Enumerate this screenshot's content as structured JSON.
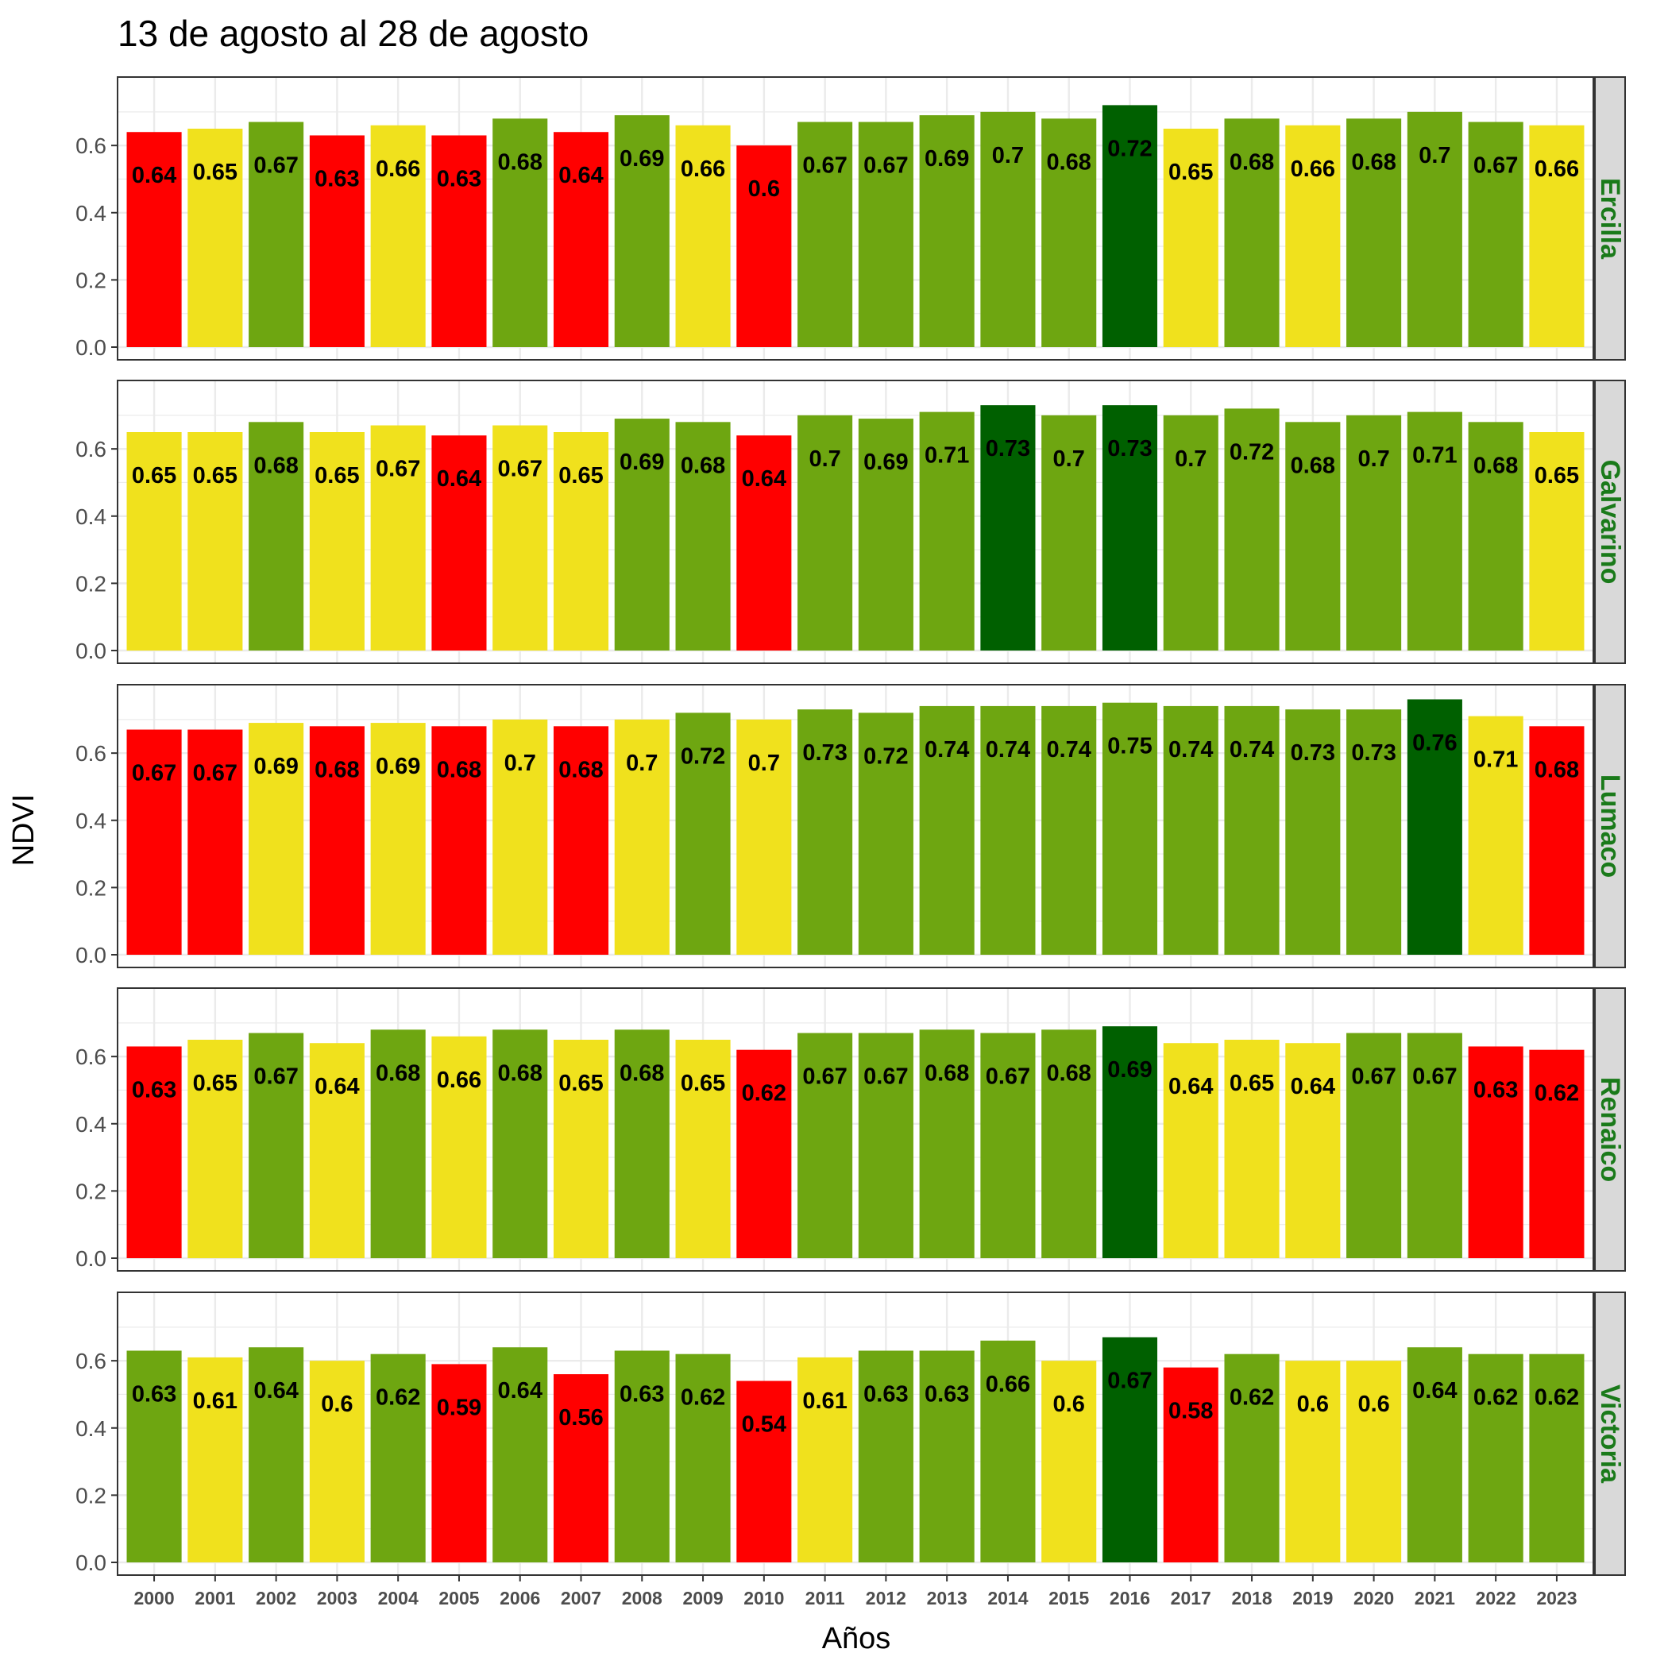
{
  "chart_data": {
    "type": "bar",
    "title": "13 de agosto al 28 de agosto",
    "xlabel": "Años",
    "ylabel": "NDVI",
    "ylim": [
      0,
      0.8
    ],
    "yticks": [
      "0.0",
      "0.2",
      "0.4",
      "0.6"
    ],
    "grid": true,
    "legend": "none",
    "facet_label_position": "right",
    "categories": [
      "2000",
      "2001",
      "2002",
      "2003",
      "2004",
      "2005",
      "2006",
      "2007",
      "2008",
      "2009",
      "2010",
      "2011",
      "2012",
      "2013",
      "2014",
      "2015",
      "2016",
      "2017",
      "2018",
      "2019",
      "2020",
      "2021",
      "2022",
      "2023"
    ],
    "colors": {
      "red": "#ff0000",
      "yellow": "#f0e11d",
      "green": "#6ea611",
      "darkgreen": "#006000",
      "strip_fill": "#d9d9d9",
      "strip_text": "#1a7a1a",
      "grid": "#ebebeb"
    },
    "facets": [
      {
        "name": "Ercilla",
        "values": [
          0.64,
          0.65,
          0.67,
          0.63,
          0.66,
          0.63,
          0.68,
          0.64,
          0.69,
          0.66,
          0.6,
          0.67,
          0.67,
          0.69,
          0.7,
          0.68,
          0.72,
          0.65,
          0.68,
          0.66,
          0.68,
          0.7,
          0.67,
          0.66
        ],
        "labels": [
          "0.64",
          "0.65",
          "0.67",
          "0.63",
          "0.66",
          "0.63",
          "0.68",
          "0.64",
          "0.69",
          "0.66",
          "0.6",
          "0.67",
          "0.67",
          "0.69",
          "0.7",
          "0.68",
          "0.72",
          "0.65",
          "0.68",
          "0.66",
          "0.68",
          "0.7",
          "0.67",
          "0.66"
        ],
        "bar_colors": [
          "red",
          "yellow",
          "green",
          "red",
          "yellow",
          "red",
          "green",
          "red",
          "green",
          "yellow",
          "red",
          "green",
          "green",
          "green",
          "green",
          "green",
          "darkgreen",
          "yellow",
          "green",
          "yellow",
          "green",
          "green",
          "green",
          "yellow"
        ]
      },
      {
        "name": "Galvarino",
        "values": [
          0.65,
          0.65,
          0.68,
          0.65,
          0.67,
          0.64,
          0.67,
          0.65,
          0.69,
          0.68,
          0.64,
          0.7,
          0.69,
          0.71,
          0.73,
          0.7,
          0.73,
          0.7,
          0.72,
          0.68,
          0.7,
          0.71,
          0.68,
          0.65
        ],
        "labels": [
          "0.65",
          "0.65",
          "0.68",
          "0.65",
          "0.67",
          "0.64",
          "0.67",
          "0.65",
          "0.69",
          "0.68",
          "0.64",
          "0.7",
          "0.69",
          "0.71",
          "0.73",
          "0.7",
          "0.73",
          "0.7",
          "0.72",
          "0.68",
          "0.7",
          "0.71",
          "0.68",
          "0.65"
        ],
        "bar_colors": [
          "yellow",
          "yellow",
          "green",
          "yellow",
          "yellow",
          "red",
          "yellow",
          "yellow",
          "green",
          "green",
          "red",
          "green",
          "green",
          "green",
          "darkgreen",
          "green",
          "darkgreen",
          "green",
          "green",
          "green",
          "green",
          "green",
          "green",
          "yellow"
        ]
      },
      {
        "name": "Lumaco",
        "values": [
          0.67,
          0.67,
          0.69,
          0.68,
          0.69,
          0.68,
          0.7,
          0.68,
          0.7,
          0.72,
          0.7,
          0.73,
          0.72,
          0.74,
          0.74,
          0.74,
          0.75,
          0.74,
          0.74,
          0.73,
          0.73,
          0.76,
          0.71,
          0.68
        ],
        "labels": [
          "0.67",
          "0.67",
          "0.69",
          "0.68",
          "0.69",
          "0.68",
          "0.7",
          "0.68",
          "0.7",
          "0.72",
          "0.7",
          "0.73",
          "0.72",
          "0.74",
          "0.74",
          "0.74",
          "0.75",
          "0.74",
          "0.74",
          "0.73",
          "0.73",
          "0.76",
          "0.71",
          "0.68"
        ],
        "bar_colors": [
          "red",
          "red",
          "yellow",
          "red",
          "yellow",
          "red",
          "yellow",
          "red",
          "yellow",
          "green",
          "yellow",
          "green",
          "green",
          "green",
          "green",
          "green",
          "green",
          "green",
          "green",
          "green",
          "green",
          "darkgreen",
          "yellow",
          "red"
        ]
      },
      {
        "name": "Renaico",
        "values": [
          0.63,
          0.65,
          0.67,
          0.64,
          0.68,
          0.66,
          0.68,
          0.65,
          0.68,
          0.65,
          0.62,
          0.67,
          0.67,
          0.68,
          0.67,
          0.68,
          0.69,
          0.64,
          0.65,
          0.64,
          0.67,
          0.67,
          0.63,
          0.62
        ],
        "labels": [
          "0.63",
          "0.65",
          "0.67",
          "0.64",
          "0.68",
          "0.66",
          "0.68",
          "0.65",
          "0.68",
          "0.65",
          "0.62",
          "0.67",
          "0.67",
          "0.68",
          "0.67",
          "0.68",
          "0.69",
          "0.64",
          "0.65",
          "0.64",
          "0.67",
          "0.67",
          "0.63",
          "0.62"
        ],
        "bar_colors": [
          "red",
          "yellow",
          "green",
          "yellow",
          "green",
          "yellow",
          "green",
          "yellow",
          "green",
          "yellow",
          "red",
          "green",
          "green",
          "green",
          "green",
          "green",
          "darkgreen",
          "yellow",
          "yellow",
          "yellow",
          "green",
          "green",
          "red",
          "red"
        ]
      },
      {
        "name": "Victoria",
        "values": [
          0.63,
          0.61,
          0.64,
          0.6,
          0.62,
          0.59,
          0.64,
          0.56,
          0.63,
          0.62,
          0.54,
          0.61,
          0.63,
          0.63,
          0.66,
          0.6,
          0.67,
          0.58,
          0.62,
          0.6,
          0.6,
          0.64,
          0.62,
          0.62
        ],
        "labels": [
          "0.63",
          "0.61",
          "0.64",
          "0.6",
          "0.62",
          "0.59",
          "0.64",
          "0.56",
          "0.63",
          "0.62",
          "0.54",
          "0.61",
          "0.63",
          "0.63",
          "0.66",
          "0.6",
          "0.67",
          "0.58",
          "0.62",
          "0.6",
          "0.6",
          "0.64",
          "0.62",
          "0.62"
        ],
        "bar_colors": [
          "green",
          "yellow",
          "green",
          "yellow",
          "green",
          "red",
          "green",
          "red",
          "green",
          "green",
          "red",
          "yellow",
          "green",
          "green",
          "green",
          "yellow",
          "darkgreen",
          "red",
          "green",
          "yellow",
          "yellow",
          "green",
          "green",
          "green"
        ]
      }
    ]
  }
}
